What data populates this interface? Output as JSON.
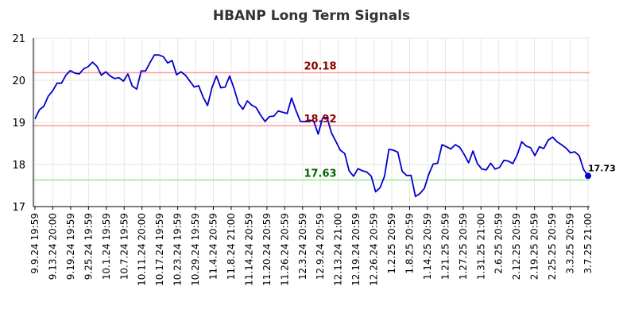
{
  "chart_data": {
    "type": "line",
    "title": "HBANP Long Term Signals",
    "ylim": [
      17,
      21
    ],
    "yticks": [
      17,
      18,
      19,
      20,
      21
    ],
    "grid": true,
    "colors": {
      "line": "#0000cc",
      "upper": "#ff9999",
      "middle": "#ff9999",
      "lower": "#90ee90",
      "upper_label": "#8b0000",
      "middle_label": "#8b0000",
      "lower_label": "#006400",
      "last_point": "#0000cc",
      "grid": "#e6e6e6",
      "axis": "#000000",
      "title": "#333333"
    },
    "levels": [
      {
        "id": "upper",
        "value": 20.18,
        "label": "20.18"
      },
      {
        "id": "middle",
        "value": 18.92,
        "label": "18.92"
      },
      {
        "id": "lower",
        "value": 17.63,
        "label": "17.63"
      }
    ],
    "last_label": "17.73",
    "xticks": [
      "9.9.24 19:59",
      "9.13.24 20:00",
      "9.19.24 19:59",
      "9.25.24 19:59",
      "10.1.24 19:59",
      "10.7.24 19:59",
      "10.11.24 20:00",
      "10.17.24 19:59",
      "10.23.24 19:59",
      "10.29.24 19:59",
      "11.4.24 20:59",
      "11.8.24 21:00",
      "11.14.24 20:59",
      "11.20.24 20:59",
      "11.26.24 20:59",
      "12.3.24 20:59",
      "12.9.24 20:59",
      "12.13.24 21:00",
      "12.19.24 20:59",
      "12.26.24 20:59",
      "1.2.25 20:59",
      "1.8.25 20:59",
      "1.14.25 20:59",
      "1.21.25 20:59",
      "1.27.25 20:59",
      "1.31.25 21:00",
      "2.6.25 20:59",
      "2.12.25 20:59",
      "2.19.25 20:59",
      "2.25.25 20:59",
      "3.3.25 20:59",
      "3.7.25 21:00"
    ],
    "values": [
      19.08,
      19.3,
      19.38,
      19.62,
      19.75,
      19.93,
      19.93,
      20.12,
      20.23,
      20.17,
      20.15,
      20.27,
      20.32,
      20.43,
      20.33,
      20.12,
      20.2,
      20.1,
      20.04,
      20.06,
      19.98,
      20.15,
      19.86,
      19.79,
      20.22,
      20.22,
      20.42,
      20.6,
      20.6,
      20.56,
      20.41,
      20.47,
      20.13,
      20.2,
      20.12,
      19.98,
      19.84,
      19.87,
      19.6,
      19.4,
      19.82,
      20.1,
      19.82,
      19.84,
      20.1,
      19.8,
      19.45,
      19.31,
      19.51,
      19.41,
      19.35,
      19.17,
      19.02,
      19.14,
      19.15,
      19.27,
      19.24,
      19.21,
      19.58,
      19.28,
      19.02,
      19.02,
      19.05,
      19.03,
      18.72,
      19.1,
      19.12,
      18.75,
      18.55,
      18.34,
      18.26,
      17.85,
      17.72,
      17.9,
      17.85,
      17.82,
      17.72,
      17.35,
      17.45,
      17.72,
      18.36,
      18.34,
      18.29,
      17.84,
      17.74,
      17.74,
      17.24,
      17.31,
      17.43,
      17.77,
      18.01,
      18.03,
      18.47,
      18.42,
      18.37,
      18.47,
      18.41,
      18.24,
      18.04,
      18.32,
      18.02,
      17.89,
      17.87,
      18.03,
      17.89,
      17.93,
      18.1,
      18.08,
      18.02,
      18.23,
      18.54,
      18.44,
      18.4,
      18.21,
      18.42,
      18.38,
      18.58,
      18.65,
      18.54,
      18.47,
      18.39,
      18.28,
      18.3,
      18.21,
      17.88,
      17.73
    ]
  }
}
